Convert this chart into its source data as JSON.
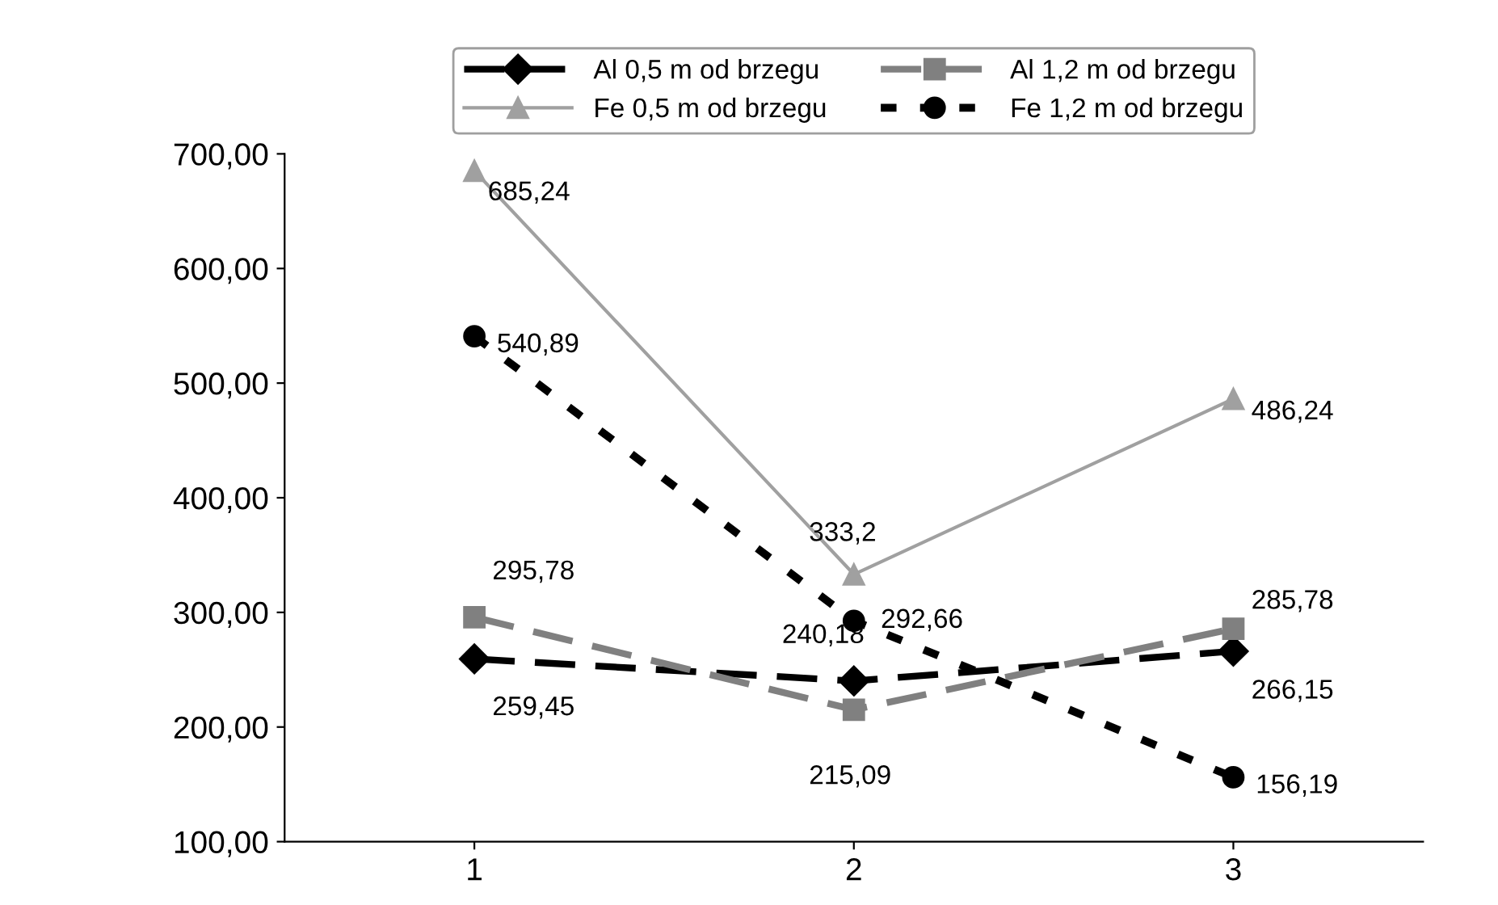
{
  "chart_data": {
    "type": "line",
    "categories": [
      "1",
      "2",
      "3"
    ],
    "series": [
      {
        "name": "Al 0,5 m od brzegu",
        "color": "#000000",
        "values": [
          259.45,
          240.18,
          266.15
        ],
        "value_labels": [
          "259,45",
          "240,18",
          "266,15"
        ],
        "marker": "diamond",
        "line_style": "dashed"
      },
      {
        "name": "Al 1,2 m od brzegu",
        "color": "#808080",
        "values": [
          295.78,
          215.09,
          285.78
        ],
        "value_labels": [
          "295,78",
          "215,09",
          "285,78"
        ],
        "marker": "square",
        "line_style": "dashed"
      },
      {
        "name": "Fe 0,5 m od brzegu",
        "color": "#a0a0a0",
        "values": [
          685.24,
          333.2,
          486.24
        ],
        "value_labels": [
          "685,24",
          "333,2",
          "486,24"
        ],
        "marker": "triangle",
        "line_style": "solid"
      },
      {
        "name": "Fe 1,2 m od brzegu",
        "color": "#000000",
        "values": [
          540.89,
          292.66,
          156.19
        ],
        "value_labels": [
          "540,89",
          "292,66",
          "156,19"
        ],
        "marker": "circle",
        "line_style": "dotted"
      }
    ],
    "ylim": [
      100,
      700
    ],
    "yticks": [
      {
        "value": 100,
        "label": "100,00"
      },
      {
        "value": 200,
        "label": "200,00"
      },
      {
        "value": 300,
        "label": "300,00"
      },
      {
        "value": 400,
        "label": "400,00"
      },
      {
        "value": 500,
        "label": "500,00"
      },
      {
        "value": 600,
        "label": "600,00"
      },
      {
        "value": 700,
        "label": "700,00"
      }
    ],
    "legend": "top",
    "grid": false
  }
}
